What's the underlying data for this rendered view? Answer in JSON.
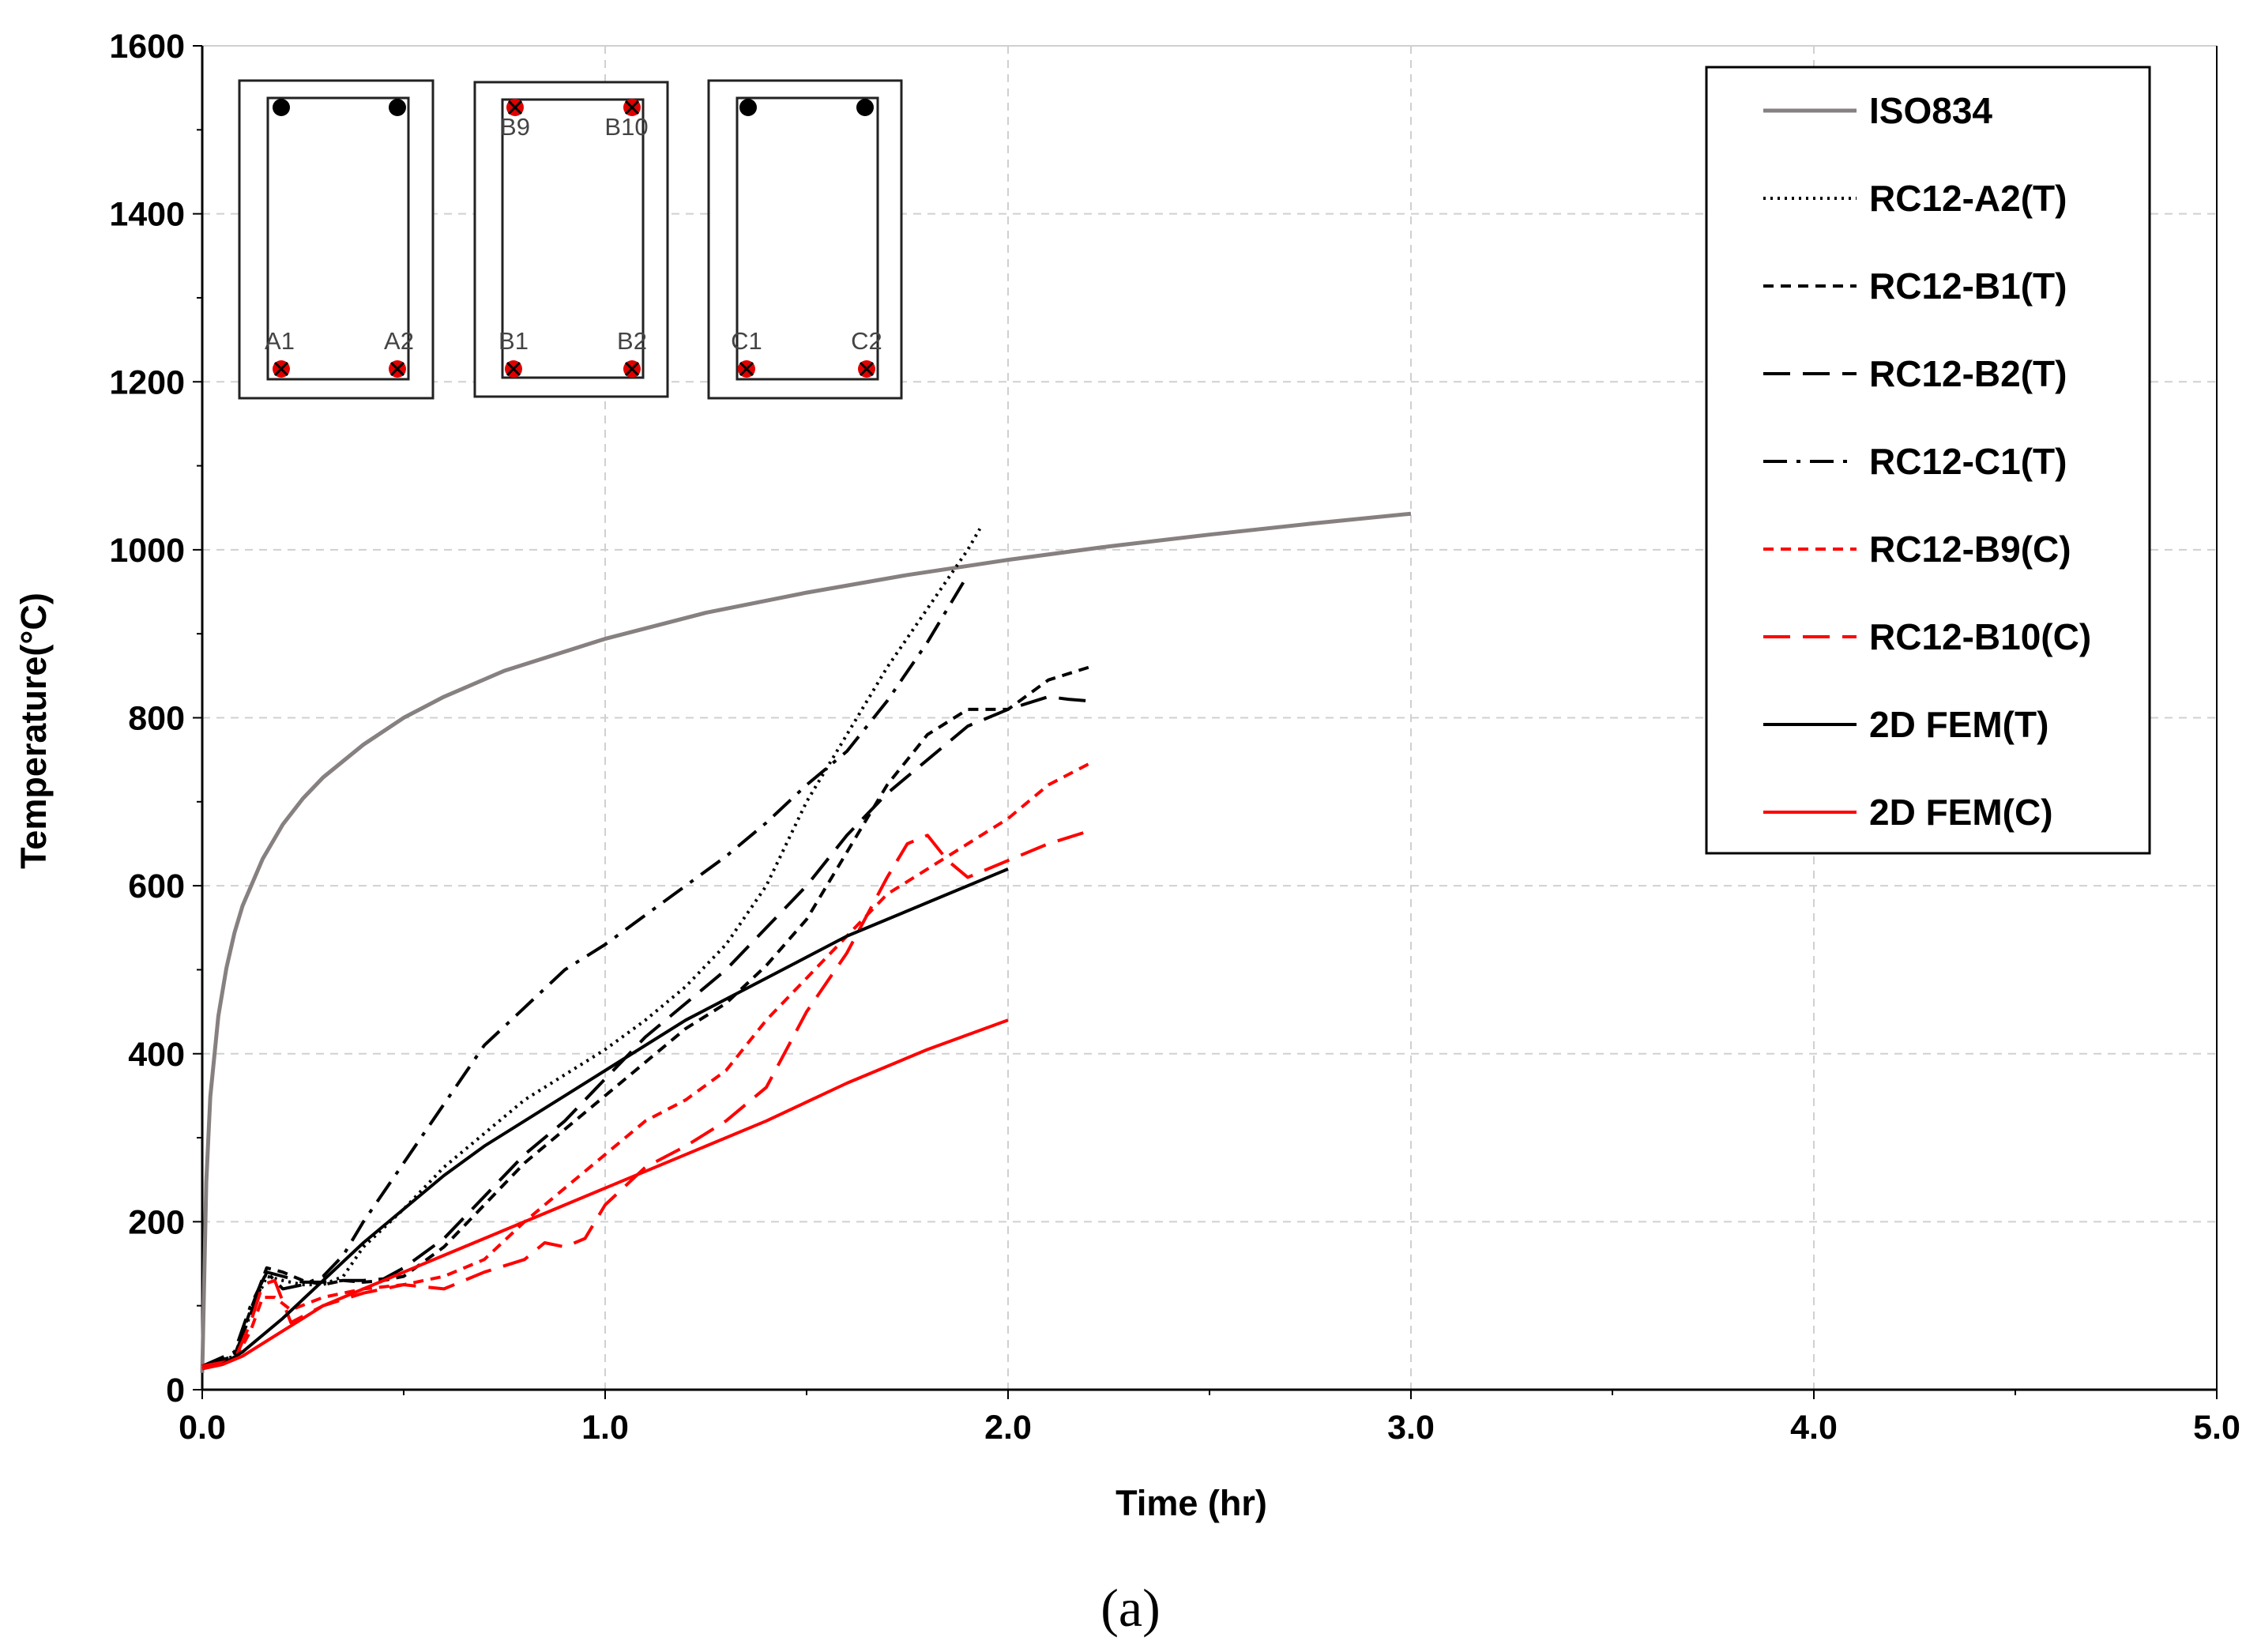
{
  "chart_data": {
    "type": "line",
    "xlabel": "Time (hr)",
    "ylabel": "Temperature(°C)",
    "xlim": [
      0,
      5
    ],
    "ylim": [
      0,
      1600
    ],
    "xticks": [
      "0.0",
      "1.0",
      "2.0",
      "3.0",
      "4.0",
      "5.0"
    ],
    "yticks": [
      "0",
      "200",
      "400",
      "600",
      "800",
      "1000",
      "1200",
      "1400",
      "1600"
    ],
    "grid": true,
    "legend_position": "top-right",
    "caption": "(a)",
    "series": [
      {
        "name": "ISO834",
        "color": "#878080",
        "dash": "solid",
        "x": [
          0,
          0.01,
          0.02,
          0.04,
          0.06,
          0.08,
          0.1,
          0.15,
          0.2,
          0.25,
          0.3,
          0.4,
          0.5,
          0.6,
          0.75,
          1.0,
          1.25,
          1.5,
          1.75,
          2.0,
          2.25,
          2.5,
          2.75,
          3.0
        ],
        "y": [
          20,
          247,
          349,
          445,
          502,
          544,
          576,
          632,
          673,
          704,
          729,
          768,
          800,
          825,
          856,
          894,
          925,
          949,
          970,
          988,
          1004,
          1018,
          1031,
          1043
        ]
      },
      {
        "name": "RC12-A2(T)",
        "color": "#000000",
        "dash": "dotted",
        "x": [
          0,
          0.08,
          0.12,
          0.16,
          0.2,
          0.25,
          0.3,
          0.35,
          0.4,
          0.5,
          0.6,
          0.7,
          0.8,
          0.9,
          1.0,
          1.1,
          1.2,
          1.3,
          1.4,
          1.5,
          1.6,
          1.7,
          1.8,
          1.9,
          1.93
        ],
        "y": [
          28,
          40,
          90,
          135,
          130,
          125,
          125,
          135,
          170,
          215,
          265,
          305,
          345,
          375,
          405,
          440,
          480,
          530,
          600,
          700,
          780,
          860,
          930,
          1000,
          1025
        ]
      },
      {
        "name": "RC12-B1(T)",
        "color": "#000000",
        "dash": "short-dash",
        "x": [
          0,
          0.08,
          0.12,
          0.16,
          0.2,
          0.25,
          0.3,
          0.35,
          0.4,
          0.45,
          0.5,
          0.6,
          0.7,
          0.8,
          0.9,
          1.0,
          1.1,
          1.2,
          1.3,
          1.4,
          1.5,
          1.6,
          1.7,
          1.8,
          1.9,
          2.0,
          2.1,
          2.2
        ],
        "y": [
          28,
          40,
          95,
          145,
          140,
          130,
          125,
          130,
          128,
          130,
          135,
          170,
          220,
          270,
          310,
          350,
          390,
          430,
          460,
          505,
          560,
          640,
          720,
          780,
          810,
          810,
          845,
          860
        ]
      },
      {
        "name": "RC12-B2(T)",
        "color": "#000000",
        "dash": "long-dash",
        "x": [
          0,
          0.08,
          0.12,
          0.16,
          0.2,
          0.25,
          0.3,
          0.35,
          0.4,
          0.45,
          0.5,
          0.6,
          0.7,
          0.8,
          0.9,
          1.0,
          1.1,
          1.2,
          1.3,
          1.4,
          1.5,
          1.6,
          1.7,
          1.8,
          1.9,
          2.0,
          2.1,
          2.15,
          2.2
        ],
        "y": [
          28,
          40,
          90,
          140,
          135,
          128,
          128,
          130,
          130,
          132,
          145,
          180,
          230,
          280,
          320,
          370,
          420,
          460,
          500,
          550,
          600,
          660,
          710,
          750,
          790,
          810,
          825,
          822,
          820
        ]
      },
      {
        "name": "RC12-C1(T)",
        "color": "#000000",
        "dash": "dash-dot",
        "x": [
          0,
          0.08,
          0.12,
          0.16,
          0.2,
          0.25,
          0.3,
          0.35,
          0.4,
          0.5,
          0.6,
          0.7,
          0.8,
          0.9,
          1.0,
          1.1,
          1.2,
          1.3,
          1.4,
          1.5,
          1.6,
          1.7,
          1.8,
          1.9
        ],
        "y": [
          28,
          45,
          100,
          140,
          120,
          125,
          135,
          160,
          200,
          270,
          340,
          410,
          455,
          500,
          530,
          565,
          600,
          635,
          675,
          720,
          760,
          820,
          890,
          970
        ]
      },
      {
        "name": "RC12-B9(C)",
        "color": "#ff0000",
        "dash": "short-dash",
        "x": [
          0,
          0.08,
          0.12,
          0.15,
          0.18,
          0.22,
          0.3,
          0.4,
          0.5,
          0.6,
          0.7,
          0.8,
          0.9,
          1.0,
          1.1,
          1.2,
          1.3,
          1.4,
          1.5,
          1.6,
          1.7,
          1.8,
          1.9,
          2.0,
          2.1,
          2.2
        ],
        "y": [
          28,
          35,
          70,
          110,
          110,
          95,
          110,
          120,
          125,
          135,
          155,
          200,
          240,
          280,
          320,
          345,
          380,
          440,
          490,
          540,
          590,
          620,
          650,
          680,
          720,
          745
        ]
      },
      {
        "name": "RC12-B10(C)",
        "color": "#ff0000",
        "dash": "long-dash",
        "x": [
          0,
          0.08,
          0.12,
          0.15,
          0.18,
          0.22,
          0.3,
          0.4,
          0.5,
          0.6,
          0.7,
          0.8,
          0.85,
          0.9,
          0.95,
          1.0,
          1.1,
          1.2,
          1.3,
          1.4,
          1.5,
          1.6,
          1.7,
          1.75,
          1.8,
          1.85,
          1.9,
          2.0,
          2.1,
          2.2
        ],
        "y": [
          28,
          35,
          80,
          125,
          130,
          80,
          100,
          115,
          125,
          120,
          140,
          155,
          175,
          170,
          180,
          220,
          265,
          290,
          320,
          360,
          450,
          520,
          610,
          650,
          660,
          630,
          610,
          630,
          650,
          665
        ]
      },
      {
        "name": "2D FEM(T)",
        "color": "#000000",
        "dash": "solid",
        "x": [
          0,
          0.05,
          0.1,
          0.2,
          0.3,
          0.4,
          0.5,
          0.6,
          0.7,
          0.8,
          0.9,
          1.0,
          1.2,
          1.4,
          1.6,
          1.8,
          2.0
        ],
        "y": [
          25,
          30,
          45,
          85,
          130,
          175,
          215,
          255,
          290,
          320,
          350,
          380,
          440,
          490,
          540,
          580,
          620
        ]
      },
      {
        "name": "2D FEM(C)",
        "color": "#ff0000",
        "dash": "solid",
        "x": [
          0,
          0.05,
          0.1,
          0.2,
          0.3,
          0.4,
          0.5,
          0.6,
          0.7,
          0.8,
          0.9,
          1.0,
          1.2,
          1.4,
          1.6,
          1.8,
          2.0
        ],
        "y": [
          25,
          30,
          40,
          70,
          100,
          120,
          140,
          160,
          180,
          200,
          220,
          240,
          280,
          320,
          365,
          405,
          440
        ]
      }
    ]
  },
  "cross_sections": [
    {
      "labels": [
        "A1",
        "A2"
      ]
    },
    {
      "labels": [
        "B9",
        "B10",
        "B1",
        "B2"
      ]
    },
    {
      "labels": [
        "C1",
        "C2"
      ]
    }
  ]
}
